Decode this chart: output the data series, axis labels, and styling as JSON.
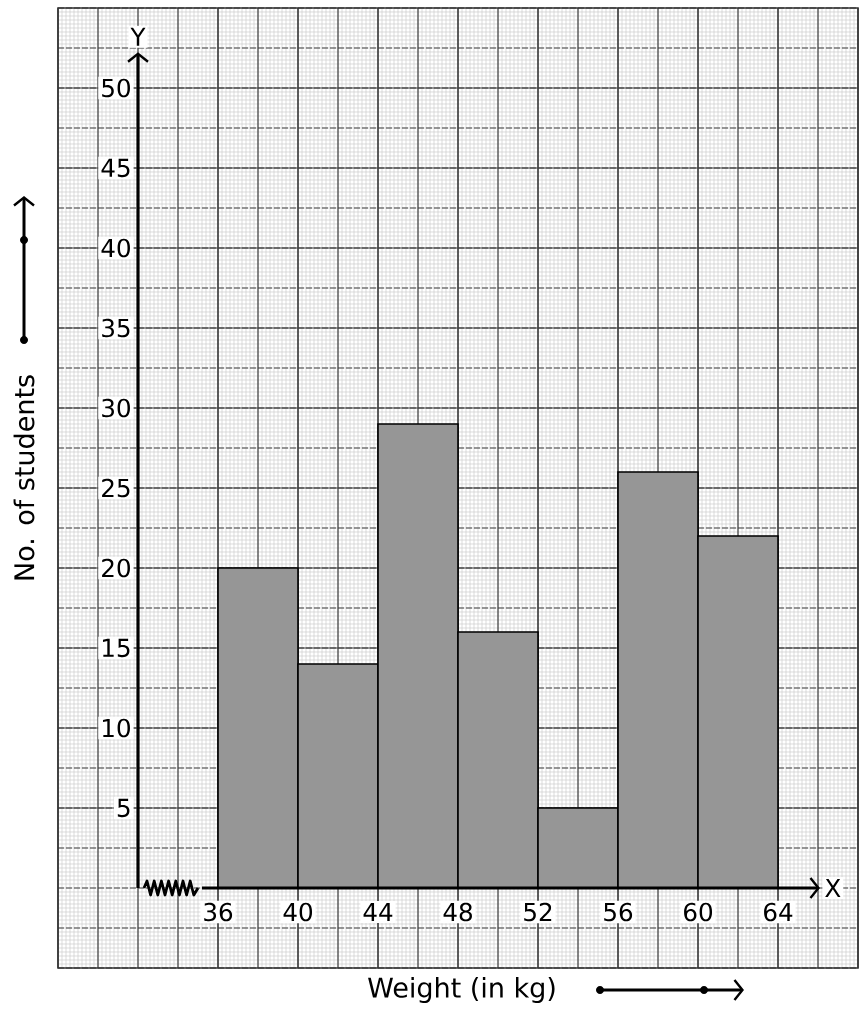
{
  "chart_data": {
    "type": "histogram",
    "xlabel": "Weight (in kg)",
    "ylabel": "No. of students",
    "bins": [
      36,
      40,
      44,
      48,
      52,
      56,
      60,
      64
    ],
    "values": [
      20,
      14,
      29,
      16,
      5,
      26,
      22
    ],
    "color": "#969696",
    "xlim": [
      28,
      68
    ],
    "ylim": [
      -5,
      55
    ],
    "xticks": [
      36,
      40,
      44,
      48,
      52,
      56,
      60,
      64
    ],
    "yticks": [
      5,
      10,
      15,
      20,
      25,
      30,
      35,
      40,
      45,
      50
    ],
    "grid": true,
    "annotations": [
      "Y",
      "X"
    ]
  }
}
